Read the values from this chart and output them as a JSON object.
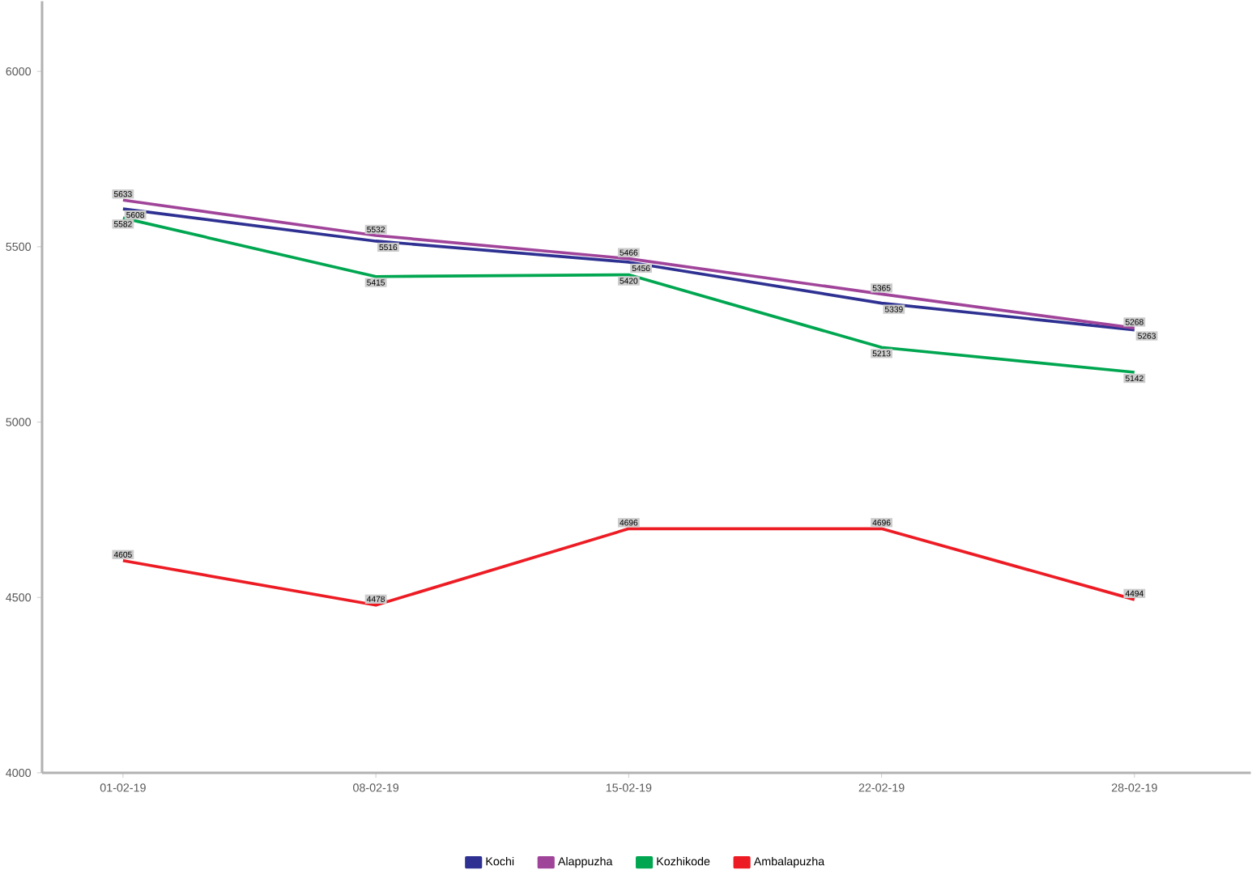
{
  "chart_data": {
    "type": "line",
    "categories": [
      "01-02-19",
      "08-02-19",
      "15-02-19",
      "22-02-19",
      "28-02-19"
    ],
    "series": [
      {
        "name": "Kochi",
        "color": "#2e3192",
        "values": [
          5608,
          5516,
          5456,
          5339,
          5263
        ]
      },
      {
        "name": "Alappuzha",
        "color": "#a0449a",
        "values": [
          5633,
          5532,
          5466,
          5365,
          5268
        ]
      },
      {
        "name": "Kozhikode",
        "color": "#00a650",
        "values": [
          5582,
          5415,
          5420,
          5213,
          5142
        ]
      },
      {
        "name": "Ambalapuzha",
        "color": "#ed1c24",
        "values": [
          4605,
          4478,
          4696,
          4696,
          4494
        ]
      }
    ],
    "ylim": [
      4000,
      6200
    ],
    "yticks": [
      4000,
      4500,
      5000,
      5500,
      6000
    ],
    "legend": "bottom",
    "data_labels": true,
    "grid": false,
    "line_style": "solid"
  }
}
